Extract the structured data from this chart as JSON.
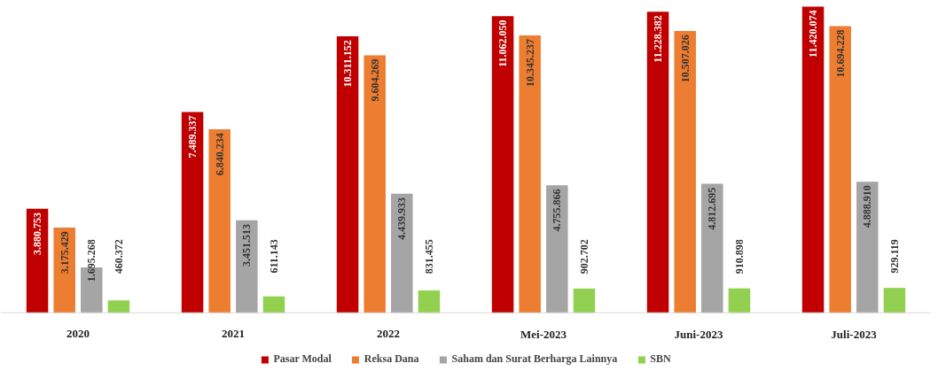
{
  "chart_data": {
    "type": "bar",
    "categories": [
      "2020",
      "2021",
      "2022",
      "Mei-2023",
      "Juni-2023",
      "Juli-2023"
    ],
    "series": [
      {
        "name": "Pasar Modal",
        "color": "#c00000",
        "values": [
          3880753,
          7489337,
          10311152,
          11062050,
          11228382,
          11420074
        ],
        "value_labels": [
          "3.880.753",
          "7.489.337",
          "10.311.152",
          "11.062.050",
          "11.228.382",
          "11.420.074"
        ]
      },
      {
        "name": "Reksa Dana",
        "color": "#ed7d31",
        "values": [
          3175429,
          6840234,
          9604269,
          10345237,
          10507026,
          10694228
        ],
        "value_labels": [
          "3.175.429",
          "6.840.234",
          "9.604.269",
          "10.345.237",
          "10.507.026",
          "10.694.228"
        ]
      },
      {
        "name": "Saham dan Surat Berharga Lainnya",
        "color": "#a5a5a5",
        "values": [
          1695268,
          3451513,
          4439933,
          4755866,
          4812695,
          4888910
        ],
        "value_labels": [
          "1.695.268",
          "3.451.513",
          "4.439.933",
          "4.755.866",
          "4.812.695",
          "4.888.910"
        ]
      },
      {
        "name": "SBN",
        "color": "#92d050",
        "values": [
          460372,
          611143,
          831455,
          902702,
          910898,
          929119
        ],
        "value_labels": [
          "460.372",
          "611.143",
          "831.455",
          "902.702",
          "910.898",
          "929.119"
        ]
      }
    ],
    "legend": "bottom"
  }
}
